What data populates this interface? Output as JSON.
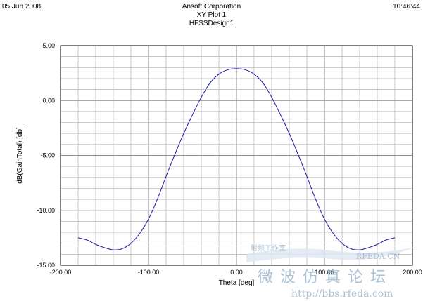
{
  "header": {
    "date": "05 Jun 2008",
    "time": "10:46:44",
    "company": "Ansoft Corporation",
    "plot_name": "XY Plot 1",
    "design": "HFSSDesign1"
  },
  "watermark": {
    "site": "RFEDA.CN",
    "cn_title": "微波仿真论坛",
    "cn_small": "射频工作室",
    "url": "http://bbs.rfeda.com"
  },
  "colors": {
    "curve": "#1a1aa0",
    "grid": "#b0b0b0",
    "watermark": "#9db7cf"
  },
  "chart_data": {
    "type": "line",
    "title": "XY Plot 1",
    "xlabel": "Theta [deg]",
    "ylabel": "dB(GainTotal) [db]",
    "xlim": [
      -200,
      200
    ],
    "ylim": [
      -15,
      5
    ],
    "grid": true,
    "x_ticks": [
      "-200.00",
      "-100.00",
      "0.00",
      "100.00",
      "200.00"
    ],
    "y_ticks": [
      "5.00",
      "0.00",
      "-5.00",
      "-10.00",
      "-15.00"
    ],
    "series": [
      {
        "x": [
          -180,
          -170,
          -160,
          -150,
          -140,
          -130,
          -120,
          -110,
          -100,
          -90,
          -80,
          -70,
          -60,
          -50,
          -40,
          -30,
          -20,
          -10,
          0,
          10,
          20,
          30,
          40,
          50,
          60,
          70,
          80,
          90,
          100,
          110,
          120,
          130,
          140,
          150,
          160,
          170,
          180
        ],
        "y": [
          -12.5,
          -12.7,
          -13.1,
          -13.4,
          -13.6,
          -13.5,
          -13.0,
          -12.1,
          -10.8,
          -9.0,
          -6.9,
          -4.9,
          -3.0,
          -1.3,
          0.3,
          1.6,
          2.4,
          2.8,
          2.9,
          2.8,
          2.4,
          1.6,
          0.3,
          -1.3,
          -3.0,
          -4.9,
          -6.9,
          -9.0,
          -10.8,
          -12.1,
          -13.0,
          -13.5,
          -13.6,
          -13.4,
          -13.1,
          -12.7,
          -12.5
        ]
      }
    ]
  }
}
